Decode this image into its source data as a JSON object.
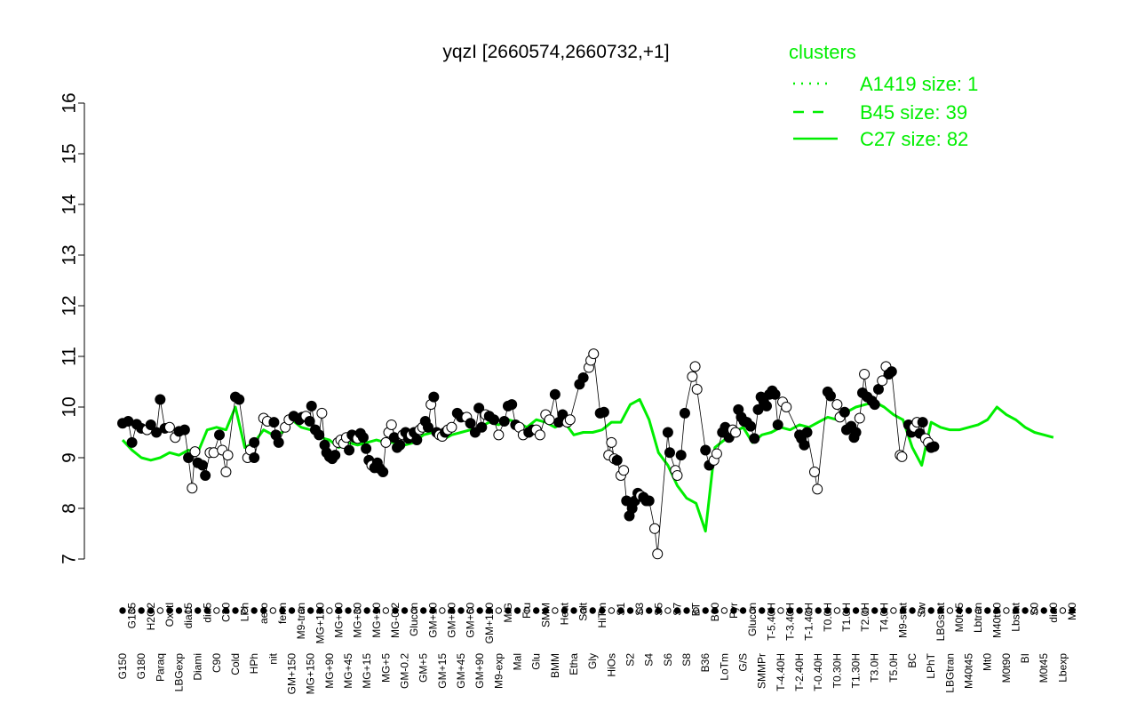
{
  "chart_data": {
    "type": "line",
    "title": "yqzI [2660574,2660732,+1]",
    "xlabel": "",
    "ylabel": "",
    "ylim": [
      7,
      16
    ],
    "yticks": [
      7,
      8,
      9,
      10,
      11,
      12,
      13,
      14,
      15,
      16
    ],
    "grid": false,
    "legend": {
      "title": "clusters",
      "placement": "top-right",
      "color": "#00ee00",
      "entries": [
        {
          "label": "A1419 size: 1",
          "style": "dotted"
        },
        {
          "label": "B45 size: 39",
          "style": "dashed"
        },
        {
          "label": "C27 size: 82",
          "style": "solid"
        }
      ]
    },
    "upper_axis_labels": [
      "G150",
      "G135",
      "G180",
      "H2O2",
      "Paraq",
      "Oxctl",
      "LBGexp",
      "dia15",
      "Diami",
      "dia5",
      "C90",
      "C30",
      "Cold",
      "LPh",
      "HPh",
      "aero",
      "nit",
      "ferm",
      "GM+150",
      "M9-tran",
      "MG+150",
      "MG+120",
      "MG+90",
      "MG+60",
      "MG+45",
      "MG+30",
      "MG+15",
      "MG+10",
      "MG+5",
      "MG-0.2",
      "GM-0.2",
      "Glucon",
      "GM+5",
      "GM+10",
      "GM+15",
      "GM+30",
      "GM+45",
      "GM+60",
      "GM+90",
      "GM+120",
      "M9-exp",
      "M/G",
      "Mal",
      "Fru",
      "Glu",
      "SMM",
      "BMM",
      "Heat",
      "Etha",
      "Salt",
      "Gly",
      "HiTm",
      "HiOs",
      "S1",
      "S2",
      "S3",
      "S4",
      "S5",
      "S6",
      "S7",
      "S8",
      "BT",
      "B36",
      "B60",
      "LoTm",
      "Pyr",
      "G/S",
      "Glucon",
      "SMMPr",
      "T-5.40H",
      "T-4.40H",
      "T-3.40H",
      "T-2.40H",
      "T-1.40H",
      "T-0.40H",
      "T0.0H",
      "T0.30H",
      "T1.0H",
      "T1.30H",
      "T2.0H",
      "T3.0H",
      "T4.0H",
      "T5.0H",
      "M9-stat",
      "BC",
      "Sw",
      "LPhT",
      "LBGstat",
      "LBGtran",
      "M0t45",
      "M40t45",
      "Lbtran",
      "Mt0",
      "M40t90",
      "M0t90",
      "Lbstat",
      "BI",
      "S0",
      "M0t45",
      "dia0",
      "Lbexp",
      "Mt0"
    ],
    "series": [
      {
        "values": [
          9.35,
          9.15,
          9.0,
          8.95,
          9.0,
          9.1,
          9.05,
          9.15,
          9.1,
          9.55,
          9.6,
          9.55,
          10.0,
          9.2,
          9.3,
          9.55,
          9.45,
          9.5,
          9.75,
          9.6,
          9.55,
          9.4,
          9.35,
          9.2,
          9.3,
          9.25,
          9.3,
          9.35,
          9.3,
          9.3,
          9.25,
          9.3,
          9.45,
          9.5,
          9.35,
          9.45,
          9.5,
          9.55,
          9.6,
          9.7,
          9.65,
          9.75,
          9.7,
          9.6,
          9.75,
          9.7,
          9.6,
          9.7,
          9.45,
          9.5,
          9.5,
          9.55,
          9.7,
          9.7,
          10.05,
          10.15,
          9.75,
          9.1,
          8.85,
          8.45,
          8.2,
          8.1,
          7.55,
          9.2,
          9.35,
          9.5,
          9.6,
          9.3,
          9.45,
          9.5,
          9.6,
          9.55,
          9.65,
          9.6,
          9.7,
          9.8,
          9.75,
          9.9,
          10.0,
          10.05,
          10.1,
          10.0,
          9.85,
          9.75,
          9.2,
          8.85,
          9.7,
          9.6,
          9.55,
          9.55,
          9.6,
          9.65,
          9.75,
          10.0,
          9.85,
          9.75,
          9.6,
          9.5,
          9.45,
          9.4
        ]
      }
    ],
    "points": [
      {
        "x": 0,
        "y": 9.68,
        "f": 1
      },
      {
        "x": 0.6,
        "y": 9.72,
        "f": 1
      },
      {
        "x": 1,
        "y": 9.3,
        "f": 1
      },
      {
        "x": 1.5,
        "y": 9.66,
        "f": 1
      },
      {
        "x": 2,
        "y": 9.58,
        "f": 1
      },
      {
        "x": 2.6,
        "y": 9.55,
        "f": 0
      },
      {
        "x": 3,
        "y": 9.65,
        "f": 1
      },
      {
        "x": 3.6,
        "y": 9.5,
        "f": 1
      },
      {
        "x": 4,
        "y": 10.15,
        "f": 1
      },
      {
        "x": 4.5,
        "y": 9.58,
        "f": 1
      },
      {
        "x": 5,
        "y": 9.6,
        "f": 0
      },
      {
        "x": 5.6,
        "y": 9.4,
        "f": 0
      },
      {
        "x": 6,
        "y": 9.52,
        "f": 1
      },
      {
        "x": 6.6,
        "y": 9.55,
        "f": 1
      },
      {
        "x": 7,
        "y": 9.0,
        "f": 1
      },
      {
        "x": 7.4,
        "y": 8.4,
        "f": 0
      },
      {
        "x": 7.7,
        "y": 9.12,
        "f": 0
      },
      {
        "x": 8,
        "y": 8.9,
        "f": 1
      },
      {
        "x": 8.5,
        "y": 8.85,
        "f": 1
      },
      {
        "x": 8.8,
        "y": 8.65,
        "f": 1
      },
      {
        "x": 9.3,
        "y": 9.1,
        "f": 0
      },
      {
        "x": 9.7,
        "y": 9.1,
        "f": 0
      },
      {
        "x": 10.3,
        "y": 9.45,
        "f": 1
      },
      {
        "x": 10.6,
        "y": 9.15,
        "f": 0
      },
      {
        "x": 11,
        "y": 8.72,
        "f": 0
      },
      {
        "x": 11.2,
        "y": 9.05,
        "f": 0
      },
      {
        "x": 12,
        "y": 10.2,
        "f": 1
      },
      {
        "x": 12.4,
        "y": 10.15,
        "f": 1
      },
      {
        "x": 13.3,
        "y": 9.0,
        "f": 0
      },
      {
        "x": 13.6,
        "y": 9.15,
        "f": 0
      },
      {
        "x": 14,
        "y": 9.3,
        "f": 1
      },
      {
        "x": 14,
        "y": 9.0,
        "f": 1
      },
      {
        "x": 15,
        "y": 9.78,
        "f": 0
      },
      {
        "x": 15.4,
        "y": 9.72,
        "f": 0
      },
      {
        "x": 16.1,
        "y": 9.7,
        "f": 1
      },
      {
        "x": 16.3,
        "y": 9.45,
        "f": 1
      },
      {
        "x": 16.6,
        "y": 9.3,
        "f": 1
      },
      {
        "x": 17.3,
        "y": 9.6,
        "f": 0
      },
      {
        "x": 17.7,
        "y": 9.75,
        "f": 0
      },
      {
        "x": 18.2,
        "y": 9.82,
        "f": 1
      },
      {
        "x": 18.8,
        "y": 9.75,
        "f": 1
      },
      {
        "x": 19.1,
        "y": 9.8,
        "f": 1
      },
      {
        "x": 19.5,
        "y": 9.82,
        "f": 0
      },
      {
        "x": 19.9,
        "y": 9.72,
        "f": 1
      },
      {
        "x": 20.1,
        "y": 10.02,
        "f": 1
      },
      {
        "x": 20.5,
        "y": 9.55,
        "f": 1
      },
      {
        "x": 20.9,
        "y": 9.45,
        "f": 1
      },
      {
        "x": 21.2,
        "y": 9.88,
        "f": 0
      },
      {
        "x": 21.5,
        "y": 9.25,
        "f": 1
      },
      {
        "x": 21.7,
        "y": 9.1,
        "f": 1
      },
      {
        "x": 22,
        "y": 9.02,
        "f": 1
      },
      {
        "x": 22.3,
        "y": 8.98,
        "f": 1
      },
      {
        "x": 22.6,
        "y": 9.05,
        "f": 1
      },
      {
        "x": 22.9,
        "y": 9.3,
        "f": 0
      },
      {
        "x": 23.2,
        "y": 9.35,
        "f": 0
      },
      {
        "x": 23.5,
        "y": 9.28,
        "f": 0
      },
      {
        "x": 23.8,
        "y": 9.4,
        "f": 0
      },
      {
        "x": 24.1,
        "y": 9.15,
        "f": 1
      },
      {
        "x": 24.4,
        "y": 9.45,
        "f": 1
      },
      {
        "x": 24.7,
        "y": 9.4,
        "f": 1
      },
      {
        "x": 25,
        "y": 9.38,
        "f": 0
      },
      {
        "x": 25.3,
        "y": 9.48,
        "f": 1
      },
      {
        "x": 25.6,
        "y": 9.4,
        "f": 1
      },
      {
        "x": 25.9,
        "y": 9.18,
        "f": 1
      },
      {
        "x": 26.2,
        "y": 8.95,
        "f": 1
      },
      {
        "x": 26.5,
        "y": 8.85,
        "f": 0
      },
      {
        "x": 26.8,
        "y": 8.8,
        "f": 1
      },
      {
        "x": 27.1,
        "y": 8.9,
        "f": 1
      },
      {
        "x": 27.4,
        "y": 8.78,
        "f": 1
      },
      {
        "x": 27.7,
        "y": 8.72,
        "f": 1
      },
      {
        "x": 28,
        "y": 9.3,
        "f": 0
      },
      {
        "x": 28.3,
        "y": 9.5,
        "f": 0
      },
      {
        "x": 28.6,
        "y": 9.65,
        "f": 0
      },
      {
        "x": 28.9,
        "y": 9.4,
        "f": 1
      },
      {
        "x": 29.2,
        "y": 9.2,
        "f": 1
      },
      {
        "x": 29.5,
        "y": 9.25,
        "f": 1
      },
      {
        "x": 29.8,
        "y": 9.45,
        "f": 0
      },
      {
        "x": 30.1,
        "y": 9.5,
        "f": 1
      },
      {
        "x": 30.4,
        "y": 9.38,
        "f": 1
      },
      {
        "x": 30.7,
        "y": 9.45,
        "f": 0
      },
      {
        "x": 31,
        "y": 9.5,
        "f": 1
      },
      {
        "x": 31.3,
        "y": 9.35,
        "f": 1
      },
      {
        "x": 31.6,
        "y": 9.55,
        "f": 0
      },
      {
        "x": 31.9,
        "y": 9.6,
        "f": 0
      },
      {
        "x": 32.2,
        "y": 9.72,
        "f": 1
      },
      {
        "x": 32.5,
        "y": 9.6,
        "f": 1
      },
      {
        "x": 32.8,
        "y": 10.05,
        "f": 0
      },
      {
        "x": 33.1,
        "y": 10.2,
        "f": 1
      },
      {
        "x": 33.4,
        "y": 9.5,
        "f": 1
      },
      {
        "x": 33.7,
        "y": 9.45,
        "f": 0
      },
      {
        "x": 34,
        "y": 9.42,
        "f": 0
      },
      {
        "x": 34.3,
        "y": 9.5,
        "f": 1
      },
      {
        "x": 34.6,
        "y": 9.55,
        "f": 0
      },
      {
        "x": 35,
        "y": 9.6,
        "f": 0
      },
      {
        "x": 35.6,
        "y": 9.88,
        "f": 1
      },
      {
        "x": 36,
        "y": 9.8,
        "f": 1
      },
      {
        "x": 36.6,
        "y": 9.8,
        "f": 0
      },
      {
        "x": 37,
        "y": 9.68,
        "f": 1
      },
      {
        "x": 37.5,
        "y": 9.5,
        "f": 1
      },
      {
        "x": 37.9,
        "y": 9.98,
        "f": 1
      },
      {
        "x": 38.2,
        "y": 9.6,
        "f": 1
      },
      {
        "x": 38.6,
        "y": 9.85,
        "f": 0
      },
      {
        "x": 39,
        "y": 9.82,
        "f": 1
      },
      {
        "x": 39.5,
        "y": 9.75,
        "f": 1
      },
      {
        "x": 40,
        "y": 9.45,
        "f": 0
      },
      {
        "x": 40.6,
        "y": 9.72,
        "f": 1
      },
      {
        "x": 41,
        "y": 10.02,
        "f": 1
      },
      {
        "x": 41.4,
        "y": 10.05,
        "f": 1
      },
      {
        "x": 41.8,
        "y": 9.65,
        "f": 1
      },
      {
        "x": 42.2,
        "y": 9.6,
        "f": 0
      },
      {
        "x": 42.6,
        "y": 9.45,
        "f": 0
      },
      {
        "x": 43.2,
        "y": 9.5,
        "f": 1
      },
      {
        "x": 43.6,
        "y": 9.55,
        "f": 1
      },
      {
        "x": 44,
        "y": 9.55,
        "f": 0
      },
      {
        "x": 44.4,
        "y": 9.45,
        "f": 0
      },
      {
        "x": 45,
        "y": 9.85,
        "f": 0
      },
      {
        "x": 45.4,
        "y": 9.75,
        "f": 0
      },
      {
        "x": 46,
        "y": 10.25,
        "f": 1
      },
      {
        "x": 46.4,
        "y": 9.7,
        "f": 1
      },
      {
        "x": 46.8,
        "y": 9.85,
        "f": 1
      },
      {
        "x": 47.3,
        "y": 9.7,
        "f": 0
      },
      {
        "x": 47.6,
        "y": 9.75,
        "f": 0
      },
      {
        "x": 48.6,
        "y": 10.45,
        "f": 1
      },
      {
        "x": 49,
        "y": 10.58,
        "f": 1
      },
      {
        "x": 49.6,
        "y": 10.78,
        "f": 0
      },
      {
        "x": 49.8,
        "y": 10.92,
        "f": 0
      },
      {
        "x": 50.1,
        "y": 11.05,
        "f": 0
      },
      {
        "x": 50.8,
        "y": 9.88,
        "f": 1
      },
      {
        "x": 51.2,
        "y": 9.9,
        "f": 1
      },
      {
        "x": 51.7,
        "y": 9.05,
        "f": 0
      },
      {
        "x": 52,
        "y": 9.3,
        "f": 0
      },
      {
        "x": 52.3,
        "y": 8.98,
        "f": 0
      },
      {
        "x": 52.6,
        "y": 8.95,
        "f": 1
      },
      {
        "x": 53,
        "y": 8.65,
        "f": 0
      },
      {
        "x": 53.3,
        "y": 8.75,
        "f": 0
      },
      {
        "x": 53.6,
        "y": 8.15,
        "f": 1
      },
      {
        "x": 53.9,
        "y": 7.85,
        "f": 1
      },
      {
        "x": 54.2,
        "y": 8.0,
        "f": 1
      },
      {
        "x": 54.5,
        "y": 8.15,
        "f": 1
      },
      {
        "x": 54.8,
        "y": 8.3,
        "f": 1
      },
      {
        "x": 55.1,
        "y": 8.25,
        "f": 0
      },
      {
        "x": 55.4,
        "y": 8.22,
        "f": 1
      },
      {
        "x": 55.7,
        "y": 8.15,
        "f": 1
      },
      {
        "x": 56,
        "y": 8.15,
        "f": 1
      },
      {
        "x": 56.6,
        "y": 7.6,
        "f": 0
      },
      {
        "x": 56.9,
        "y": 7.1,
        "f": 0
      },
      {
        "x": 58,
        "y": 9.5,
        "f": 1
      },
      {
        "x": 58.2,
        "y": 9.1,
        "f": 1
      },
      {
        "x": 58.8,
        "y": 8.75,
        "f": 0
      },
      {
        "x": 59,
        "y": 8.65,
        "f": 0
      },
      {
        "x": 59.4,
        "y": 9.05,
        "f": 1
      },
      {
        "x": 59.8,
        "y": 9.88,
        "f": 1
      },
      {
        "x": 60.6,
        "y": 10.6,
        "f": 0
      },
      {
        "x": 60.9,
        "y": 10.8,
        "f": 0
      },
      {
        "x": 61.1,
        "y": 10.35,
        "f": 0
      },
      {
        "x": 62,
        "y": 9.15,
        "f": 1
      },
      {
        "x": 62.4,
        "y": 8.85,
        "f": 1
      },
      {
        "x": 62.9,
        "y": 8.95,
        "f": 0
      },
      {
        "x": 63.2,
        "y": 9.08,
        "f": 0
      },
      {
        "x": 63.8,
        "y": 9.5,
        "f": 1
      },
      {
        "x": 64.1,
        "y": 9.6,
        "f": 1
      },
      {
        "x": 64.5,
        "y": 9.4,
        "f": 1
      },
      {
        "x": 64.9,
        "y": 9.55,
        "f": 0
      },
      {
        "x": 65.2,
        "y": 9.5,
        "f": 0
      },
      {
        "x": 65.5,
        "y": 9.95,
        "f": 1
      },
      {
        "x": 65.8,
        "y": 9.8,
        "f": 1
      },
      {
        "x": 66.1,
        "y": 9.72,
        "f": 1
      },
      {
        "x": 66.4,
        "y": 9.7,
        "f": 1
      },
      {
        "x": 66.8,
        "y": 9.62,
        "f": 1
      },
      {
        "x": 67.2,
        "y": 9.38,
        "f": 1
      },
      {
        "x": 67.6,
        "y": 9.95,
        "f": 1
      },
      {
        "x": 67.9,
        "y": 10.2,
        "f": 1
      },
      {
        "x": 68.2,
        "y": 10.1,
        "f": 1
      },
      {
        "x": 68.5,
        "y": 10.02,
        "f": 1
      },
      {
        "x": 68.8,
        "y": 10.25,
        "f": 1
      },
      {
        "x": 69.1,
        "y": 10.32,
        "f": 1
      },
      {
        "x": 69.4,
        "y": 10.25,
        "f": 1
      },
      {
        "x": 69.7,
        "y": 9.65,
        "f": 1
      },
      {
        "x": 70.2,
        "y": 10.1,
        "f": 0
      },
      {
        "x": 70.6,
        "y": 10.0,
        "f": 0
      },
      {
        "x": 72,
        "y": 9.45,
        "f": 1
      },
      {
        "x": 72.2,
        "y": 9.38,
        "f": 1
      },
      {
        "x": 72.5,
        "y": 9.25,
        "f": 1
      },
      {
        "x": 72.8,
        "y": 9.5,
        "f": 1
      },
      {
        "x": 73.6,
        "y": 8.72,
        "f": 0
      },
      {
        "x": 73.9,
        "y": 8.38,
        "f": 0
      },
      {
        "x": 75,
        "y": 10.3,
        "f": 1
      },
      {
        "x": 75.3,
        "y": 10.22,
        "f": 1
      },
      {
        "x": 76,
        "y": 10.05,
        "f": 0
      },
      {
        "x": 76.3,
        "y": 9.8,
        "f": 0
      },
      {
        "x": 76.8,
        "y": 9.9,
        "f": 1
      },
      {
        "x": 77,
        "y": 9.55,
        "f": 1
      },
      {
        "x": 77.5,
        "y": 9.62,
        "f": 1
      },
      {
        "x": 77.8,
        "y": 9.4,
        "f": 1
      },
      {
        "x": 78,
        "y": 9.5,
        "f": 1
      },
      {
        "x": 78.4,
        "y": 9.78,
        "f": 0
      },
      {
        "x": 78.7,
        "y": 10.28,
        "f": 1
      },
      {
        "x": 78.9,
        "y": 10.65,
        "f": 0
      },
      {
        "x": 79.2,
        "y": 10.2,
        "f": 1
      },
      {
        "x": 79.7,
        "y": 10.12,
        "f": 1
      },
      {
        "x": 80,
        "y": 10.05,
        "f": 1
      },
      {
        "x": 80.4,
        "y": 10.35,
        "f": 1
      },
      {
        "x": 80.8,
        "y": 10.52,
        "f": 0
      },
      {
        "x": 81.2,
        "y": 10.8,
        "f": 0
      },
      {
        "x": 81.5,
        "y": 10.65,
        "f": 1
      },
      {
        "x": 81.8,
        "y": 10.7,
        "f": 1
      },
      {
        "x": 82.7,
        "y": 9.05,
        "f": 0
      },
      {
        "x": 82.9,
        "y": 9.02,
        "f": 0
      },
      {
        "x": 83.6,
        "y": 9.65,
        "f": 1
      },
      {
        "x": 83.9,
        "y": 9.5,
        "f": 1
      },
      {
        "x": 84.2,
        "y": 9.6,
        "f": 0
      },
      {
        "x": 84.5,
        "y": 9.7,
        "f": 0
      },
      {
        "x": 84.8,
        "y": 9.48,
        "f": 1
      },
      {
        "x": 85.1,
        "y": 9.7,
        "f": 1
      },
      {
        "x": 85.4,
        "y": 9.38,
        "f": 0
      },
      {
        "x": 85.7,
        "y": 9.3,
        "f": 0
      },
      {
        "x": 86,
        "y": 9.2,
        "f": 1
      },
      {
        "x": 86.3,
        "y": 9.22,
        "f": 1
      }
    ]
  }
}
